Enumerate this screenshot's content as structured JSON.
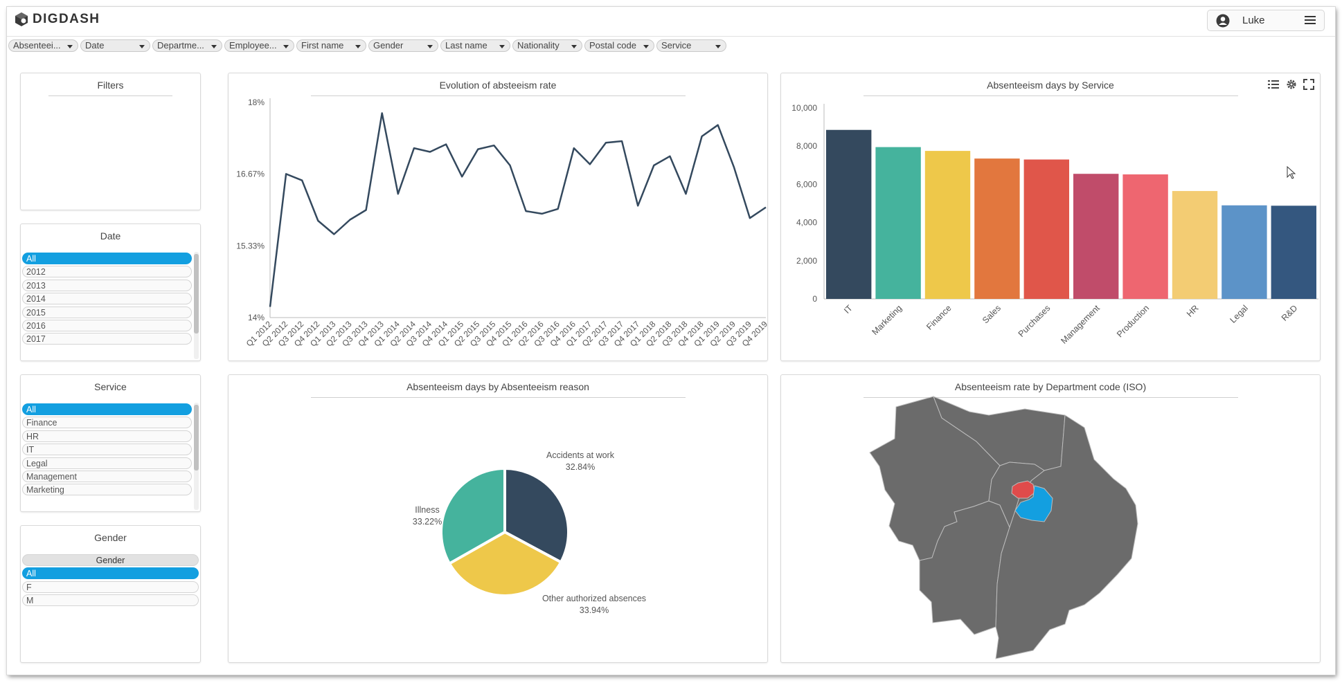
{
  "header": {
    "logo_text": "DIGDASH",
    "user_name": "Luke"
  },
  "filter_chips": [
    "Absenteei...",
    "Date",
    "Departme...",
    "Employee...",
    "First name",
    "Gender",
    "Last name",
    "Nationality",
    "Postal code",
    "Service"
  ],
  "filters_panel": {
    "title": "Filters"
  },
  "date_panel": {
    "title": "Date",
    "items": [
      "All",
      "2012",
      "2013",
      "2014",
      "2015",
      "2016",
      "2017"
    ]
  },
  "service_panel": {
    "title": "Service",
    "items": [
      "All",
      "Finance",
      "HR",
      "IT",
      "Legal",
      "Management",
      "Marketing"
    ]
  },
  "gender_panel": {
    "title": "Gender",
    "header": "Gender",
    "items": [
      "All",
      "F",
      "M"
    ]
  },
  "charts": {
    "line_title": "Evolution of absteeism rate",
    "bar_title": "Absenteeism days by Service",
    "pie_title": "Absenteeism days by Absenteeism reason",
    "map_title": "Absenteeism rate by Department code (ISO)"
  },
  "colors": {
    "accent": "#139fe0",
    "line": "#34495e",
    "map_gray": "#6b6b6b",
    "map_red": "#e04b4b",
    "map_blue": "#139fe0"
  },
  "chart_data": [
    {
      "type": "line",
      "title": "Evolution of absteeism rate",
      "yticks": [
        "14%",
        "15.33%",
        "16.67%",
        "18%"
      ],
      "ylim": [
        14,
        18
      ],
      "x": [
        "Q1 2012",
        "Q2 2012",
        "Q3 2012",
        "Q4 2012",
        "Q1 2013",
        "Q2 2013",
        "Q3 2013",
        "Q4 2013",
        "Q1 2014",
        "Q2 2014",
        "Q3 2014",
        "Q4 2014",
        "Q1 2015",
        "Q2 2015",
        "Q3 2015",
        "Q4 2015",
        "Q1 2016",
        "Q2 2016",
        "Q3 2016",
        "Q4 2016",
        "Q1 2017",
        "Q2 2017",
        "Q3 2017",
        "Q4 2017",
        "Q1 2018",
        "Q2 2018",
        "Q3 2018",
        "Q4 2018",
        "Q1 2019",
        "Q2 2019",
        "Q3 2019",
        "Q4 2019"
      ],
      "values": [
        14.2,
        16.67,
        16.55,
        15.8,
        15.55,
        15.82,
        16.0,
        17.8,
        16.3,
        17.15,
        17.08,
        17.22,
        16.62,
        17.13,
        17.2,
        16.83,
        15.98,
        15.93,
        16.02,
        17.15,
        16.85,
        17.25,
        17.28,
        16.08,
        16.83,
        17.0,
        16.3,
        17.37,
        17.58,
        16.8,
        15.85,
        16.05
      ],
      "series_color": "#34495e"
    },
    {
      "type": "bar",
      "title": "Absenteeism days by Service",
      "categories": [
        "IT",
        "Marketing",
        "Finance",
        "Sales",
        "Purchases",
        "Management",
        "Production",
        "HR",
        "Legal",
        "R&D"
      ],
      "values": [
        8850,
        7950,
        7750,
        7350,
        7300,
        6550,
        6520,
        5650,
        4900,
        4880
      ],
      "colors": [
        "#34495e",
        "#45b39d",
        "#eec84a",
        "#e2773e",
        "#e0564a",
        "#c04c6a",
        "#ee6670",
        "#f3cc73",
        "#5c93c8",
        "#34577f"
      ],
      "ylim": [
        0,
        10000
      ],
      "yticks": [
        "0",
        "2,000",
        "4,000",
        "6,000",
        "8,000",
        "10,000"
      ]
    },
    {
      "type": "pie",
      "title": "Absenteeism days by Absenteeism reason",
      "slices": [
        {
          "label": "Accidents at work",
          "pct_label": "32.84%",
          "value": 32.84,
          "color": "#34495e"
        },
        {
          "label": "Other authorized absences",
          "pct_label": "33.94%",
          "value": 33.94,
          "color": "#eec84a"
        },
        {
          "label": "Illness",
          "pct_label": "33.22%",
          "value": 33.22,
          "color": "#45b39d"
        }
      ]
    }
  ]
}
